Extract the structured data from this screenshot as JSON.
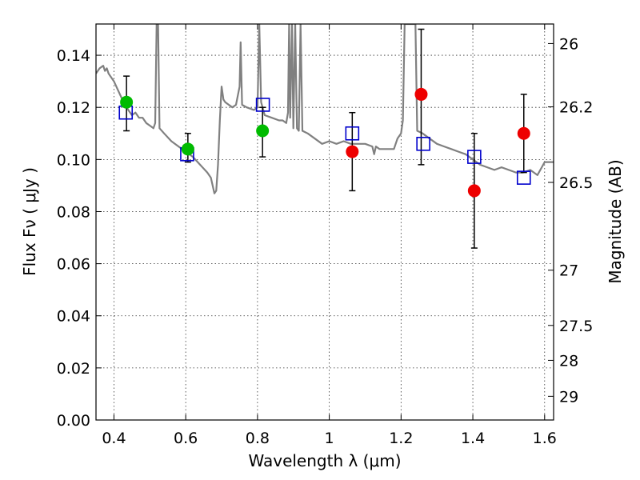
{
  "chart_data": {
    "type": "scatter",
    "xlabel": "Wavelength  λ (μm)",
    "ylabel": "Flux  Fν  ( μJy )",
    "y2label": "Magnitude (AB)",
    "xlim": [
      0.35,
      1.625
    ],
    "ylim": [
      0.0,
      0.152
    ],
    "grid": true,
    "x_ticks": [
      0.4,
      0.6,
      0.8,
      1.0,
      1.2,
      1.4,
      1.6
    ],
    "x_tick_labels": [
      "0.4",
      "0.6",
      "0.8",
      "1",
      "1.2",
      "1.4",
      "1.6"
    ],
    "y_ticks": [
      0.0,
      0.02,
      0.04,
      0.06,
      0.08,
      0.1,
      0.12,
      0.14
    ],
    "y_tick_labels": [
      "0.00",
      "0.02",
      "0.04",
      "0.06",
      "0.08",
      "0.10",
      "0.12",
      "0.14"
    ],
    "y2_ticks": [
      {
        "flux": 0.1445,
        "label": "26"
      },
      {
        "flux": 0.1202,
        "label": "26.2"
      },
      {
        "flux": 0.0912,
        "label": "26.5"
      },
      {
        "flux": 0.0575,
        "label": "27"
      },
      {
        "flux": 0.0363,
        "label": "27.5"
      },
      {
        "flux": 0.0229,
        "label": "28"
      },
      {
        "flux": 0.0091,
        "label": "29"
      }
    ],
    "colors": {
      "spectrum": "#808080",
      "green": "#00bb00",
      "red": "#ee0000",
      "model": "#0000cc",
      "errorbar": "#000000"
    },
    "series": [
      {
        "type": "line",
        "points": [
          [
            0.35,
            0.133
          ],
          [
            0.36,
            0.135
          ],
          [
            0.37,
            0.136
          ],
          [
            0.375,
            0.134
          ],
          [
            0.38,
            0.135
          ],
          [
            0.385,
            0.133
          ],
          [
            0.39,
            0.132
          ],
          [
            0.4,
            0.13
          ],
          [
            0.41,
            0.127
          ],
          [
            0.42,
            0.124
          ],
          [
            0.43,
            0.121
          ],
          [
            0.44,
            0.119
          ],
          [
            0.45,
            0.117
          ],
          [
            0.46,
            0.118
          ],
          [
            0.47,
            0.116
          ],
          [
            0.48,
            0.116
          ],
          [
            0.49,
            0.114
          ],
          [
            0.5,
            0.113
          ],
          [
            0.51,
            0.112
          ],
          [
            0.515,
            0.114
          ],
          [
            0.519,
            0.152
          ],
          [
            0.523,
            0.152
          ],
          [
            0.527,
            0.112
          ],
          [
            0.54,
            0.11
          ],
          [
            0.56,
            0.107
          ],
          [
            0.58,
            0.105
          ],
          [
            0.6,
            0.103
          ],
          [
            0.62,
            0.101
          ],
          [
            0.64,
            0.098
          ],
          [
            0.66,
            0.095
          ],
          [
            0.67,
            0.093
          ],
          [
            0.675,
            0.09
          ],
          [
            0.68,
            0.087
          ],
          [
            0.685,
            0.088
          ],
          [
            0.69,
            0.098
          ],
          [
            0.695,
            0.115
          ],
          [
            0.7,
            0.128
          ],
          [
            0.705,
            0.123
          ],
          [
            0.71,
            0.122
          ],
          [
            0.72,
            0.121
          ],
          [
            0.73,
            0.12
          ],
          [
            0.74,
            0.121
          ],
          [
            0.75,
            0.128
          ],
          [
            0.753,
            0.145
          ],
          [
            0.757,
            0.121
          ],
          [
            0.77,
            0.12
          ],
          [
            0.79,
            0.119
          ],
          [
            0.8,
            0.12
          ],
          [
            0.805,
            0.152
          ],
          [
            0.81,
            0.122
          ],
          [
            0.82,
            0.117
          ],
          [
            0.84,
            0.116
          ],
          [
            0.86,
            0.115
          ],
          [
            0.87,
            0.115
          ],
          [
            0.88,
            0.114
          ],
          [
            0.885,
            0.118
          ],
          [
            0.888,
            0.152
          ],
          [
            0.891,
            0.116
          ],
          [
            0.896,
            0.152
          ],
          [
            0.9,
            0.112
          ],
          [
            0.905,
            0.152
          ],
          [
            0.91,
            0.112
          ],
          [
            0.915,
            0.111
          ],
          [
            0.92,
            0.152
          ],
          [
            0.925,
            0.111
          ],
          [
            0.94,
            0.11
          ],
          [
            0.96,
            0.108
          ],
          [
            0.98,
            0.106
          ],
          [
            1.0,
            0.107
          ],
          [
            1.02,
            0.106
          ],
          [
            1.04,
            0.107
          ],
          [
            1.06,
            0.106
          ],
          [
            1.08,
            0.106
          ],
          [
            1.1,
            0.106
          ],
          [
            1.12,
            0.105
          ],
          [
            1.125,
            0.102
          ],
          [
            1.13,
            0.105
          ],
          [
            1.14,
            0.104
          ],
          [
            1.16,
            0.104
          ],
          [
            1.18,
            0.104
          ],
          [
            1.19,
            0.108
          ],
          [
            1.2,
            0.11
          ],
          [
            1.205,
            0.115
          ],
          [
            1.21,
            0.152
          ],
          [
            1.24,
            0.152
          ],
          [
            1.245,
            0.111
          ],
          [
            1.26,
            0.11
          ],
          [
            1.28,
            0.108
          ],
          [
            1.3,
            0.106
          ],
          [
            1.32,
            0.105
          ],
          [
            1.34,
            0.104
          ],
          [
            1.36,
            0.103
          ],
          [
            1.38,
            0.102
          ],
          [
            1.4,
            0.1
          ],
          [
            1.42,
            0.098
          ],
          [
            1.44,
            0.097
          ],
          [
            1.46,
            0.096
          ],
          [
            1.48,
            0.097
          ],
          [
            1.5,
            0.096
          ],
          [
            1.52,
            0.095
          ],
          [
            1.54,
            0.095
          ],
          [
            1.56,
            0.096
          ],
          [
            1.58,
            0.094
          ],
          [
            1.6,
            0.099
          ],
          [
            1.625,
            0.099
          ]
        ]
      },
      {
        "type": "scatter",
        "points": [
          {
            "x": 0.435,
            "y": 0.122,
            "yerr_low": 0.111,
            "yerr_high": 0.132
          },
          {
            "x": 0.606,
            "y": 0.104,
            "yerr_low": 0.099,
            "yerr_high": 0.11
          },
          {
            "x": 0.814,
            "y": 0.111,
            "yerr_low": 0.101,
            "yerr_high": 0.12
          }
        ]
      },
      {
        "type": "scatter",
        "points": [
          {
            "x": 1.064,
            "y": 0.103,
            "yerr_low": 0.088,
            "yerr_high": 0.118
          },
          {
            "x": 1.256,
            "y": 0.125,
            "yerr_low": 0.098,
            "yerr_high": 0.15
          },
          {
            "x": 1.404,
            "y": 0.088,
            "yerr_low": 0.066,
            "yerr_high": 0.11
          },
          {
            "x": 1.542,
            "y": 0.11,
            "yerr_low": 0.095,
            "yerr_high": 0.125
          }
        ]
      },
      {
        "type": "scatter",
        "points": [
          {
            "x": 0.433,
            "y": 0.118
          },
          {
            "x": 0.604,
            "y": 0.102
          },
          {
            "x": 0.815,
            "y": 0.121
          },
          {
            "x": 1.064,
            "y": 0.11
          },
          {
            "x": 1.262,
            "y": 0.106
          },
          {
            "x": 1.404,
            "y": 0.101
          },
          {
            "x": 1.542,
            "y": 0.093
          }
        ]
      }
    ]
  }
}
